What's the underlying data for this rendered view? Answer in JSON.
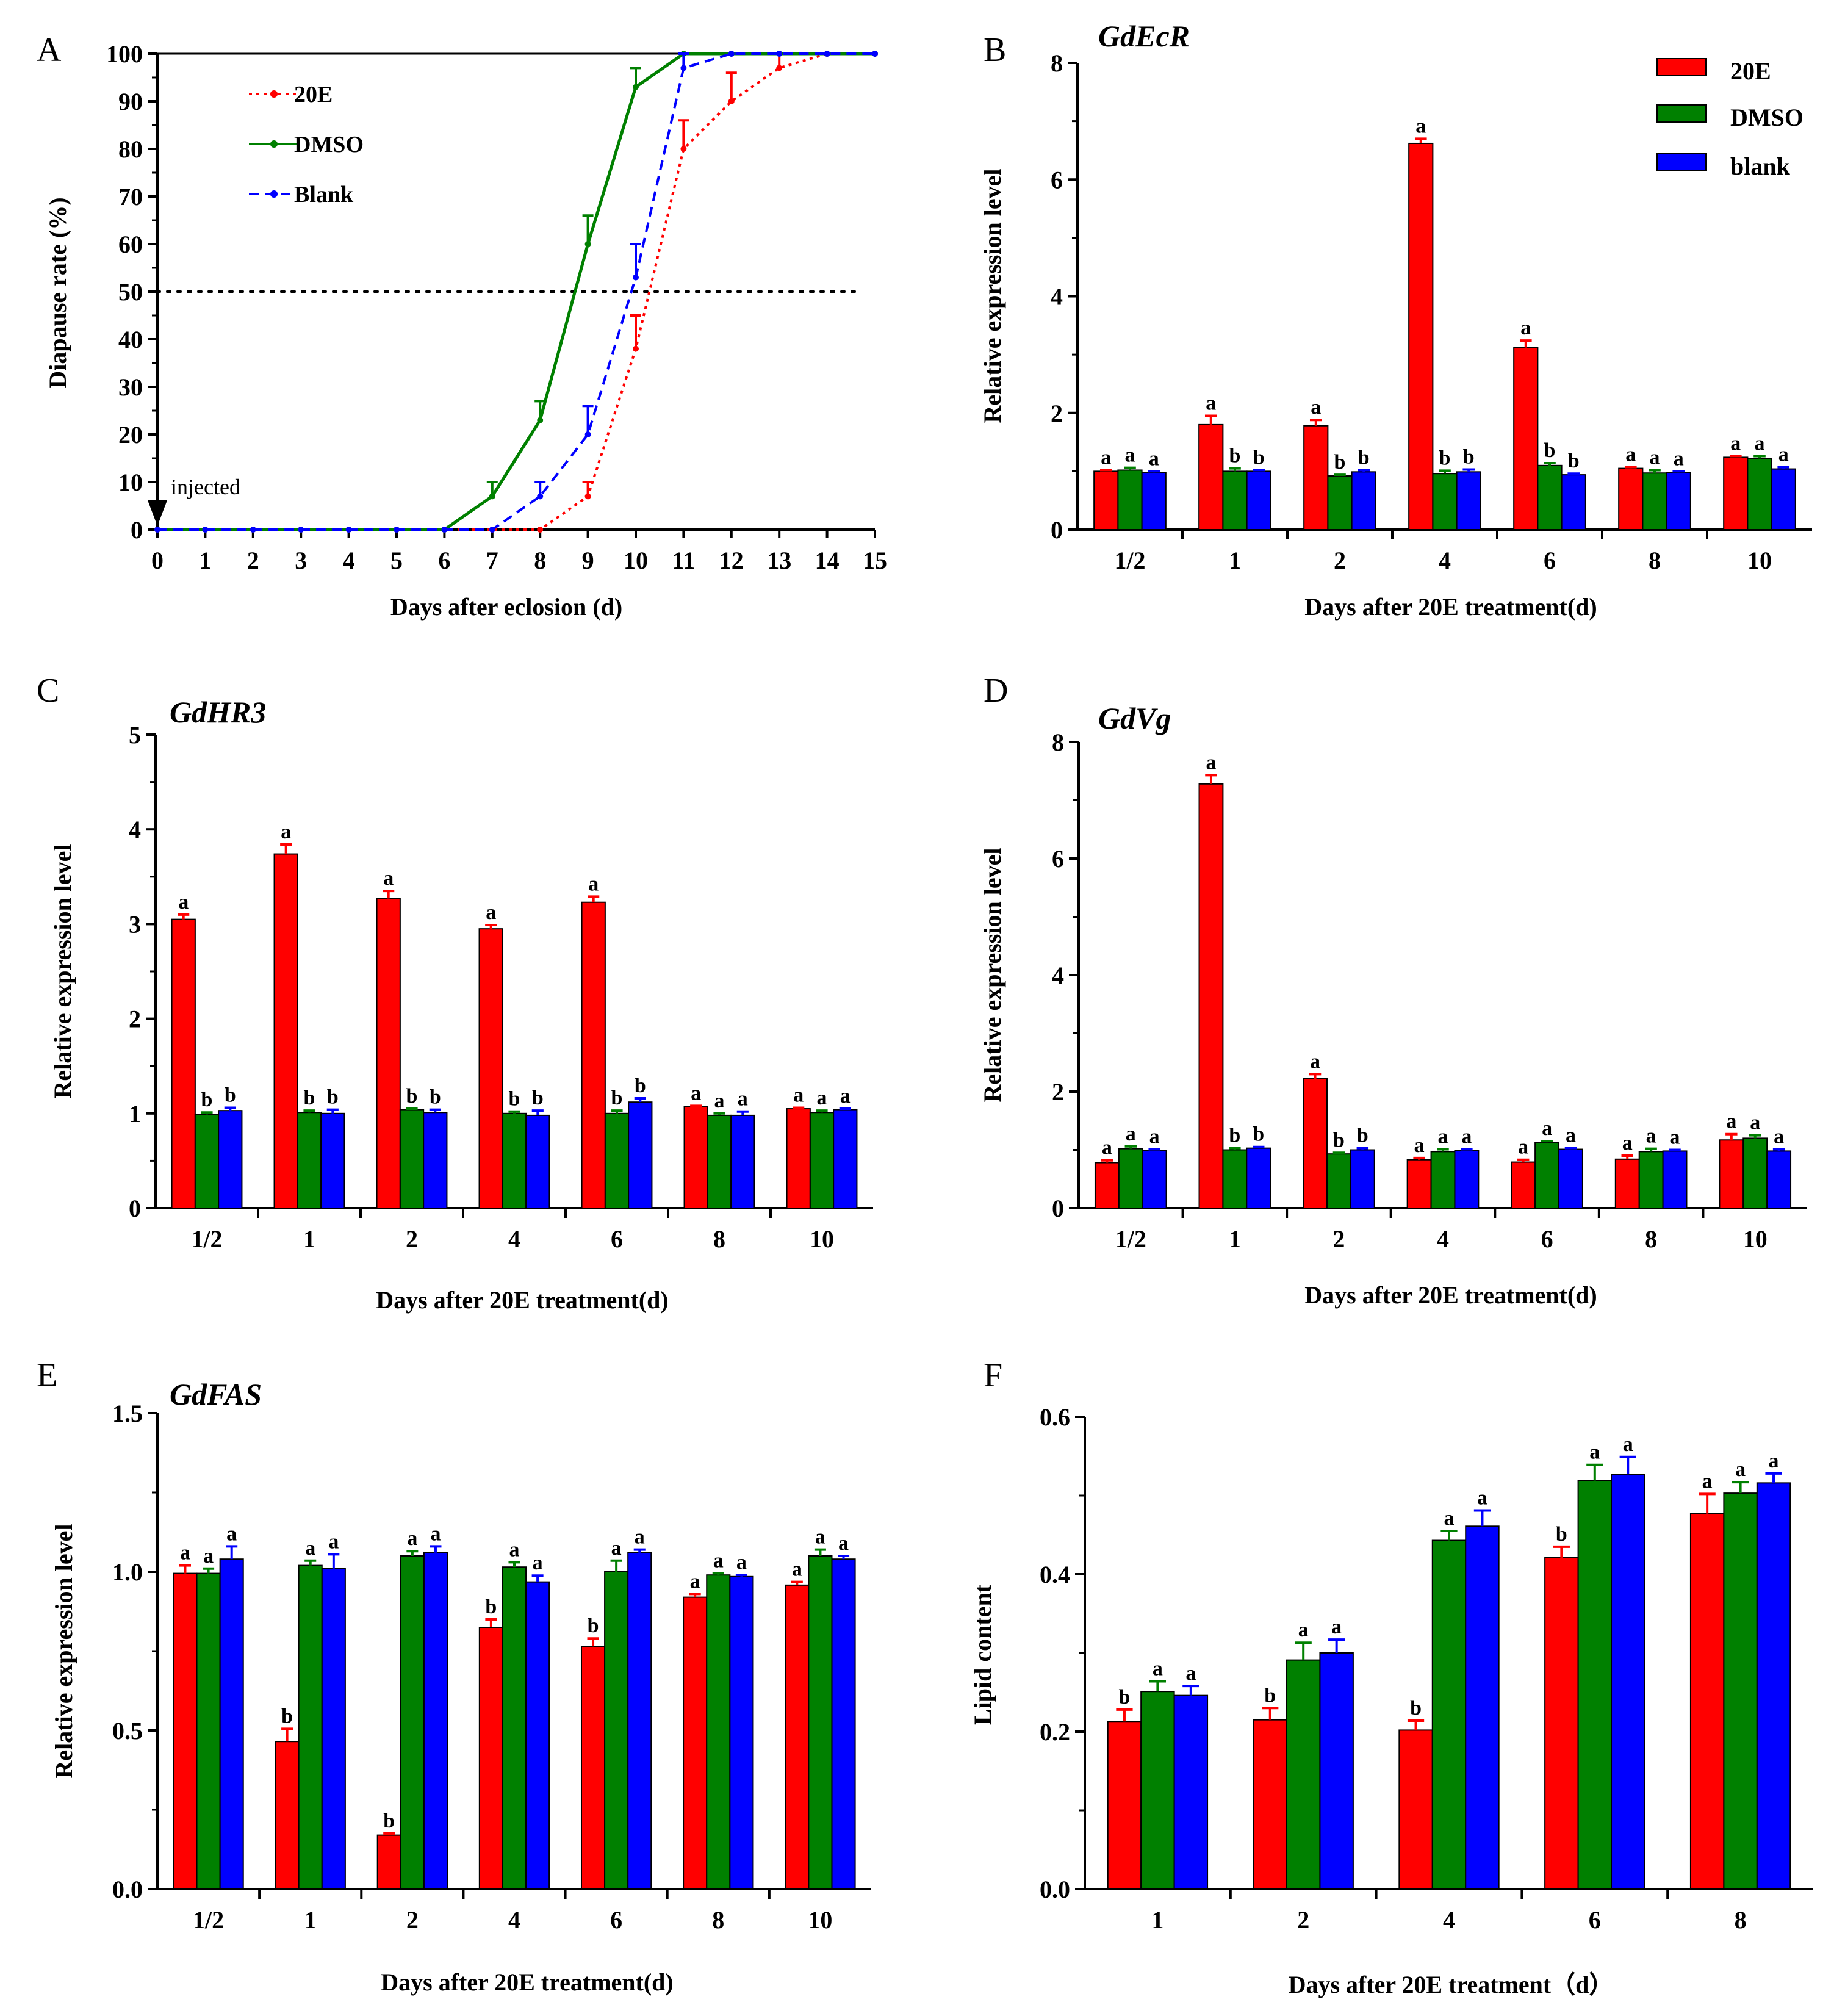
{
  "figure": {
    "background": "#ffffff"
  },
  "colors": {
    "20E": "#ff0000",
    "DMSO": "#008000",
    "blank": "#0000ff",
    "axis": "#000000",
    "bar_outline": "#000000"
  },
  "icons": {
    "injection_marker": "down-arrow-icon"
  },
  "chart_data": [
    {
      "panel": "A",
      "type": "line",
      "title": "",
      "xlabel": "Days after eclosion (d)",
      "ylabel": "Diapause rate (%)",
      "xlim": [
        0,
        15
      ],
      "ylim": [
        0,
        100
      ],
      "xticks": [
        "0",
        "1",
        "2",
        "3",
        "4",
        "5",
        "6",
        "7",
        "8",
        "9",
        "10",
        "11",
        "12",
        "13",
        "14",
        "15"
      ],
      "yticks": [
        "0",
        "10",
        "20",
        "30",
        "40",
        "50",
        "60",
        "70",
        "80",
        "90",
        "100"
      ],
      "reference_line": {
        "y": 50,
        "style": "dotted"
      },
      "annotation": {
        "text": "injected",
        "x": 0
      },
      "legend_position": "top-left",
      "grid": false,
      "series": [
        {
          "name": "20E",
          "color": "#ff0000",
          "style": "dotted",
          "x": [
            0,
            1,
            2,
            3,
            4,
            5,
            6,
            7,
            8,
            9,
            10,
            11,
            12,
            13,
            14,
            15
          ],
          "values": [
            0,
            0,
            0,
            0,
            0,
            0,
            0,
            0,
            0,
            7,
            38,
            80,
            90,
            97,
            100,
            100
          ],
          "errors": [
            0,
            0,
            0,
            0,
            0,
            0,
            0,
            0,
            0,
            3,
            7,
            6,
            6,
            3,
            0,
            0
          ]
        },
        {
          "name": "DMSO",
          "color": "#008000",
          "style": "solid",
          "x": [
            0,
            1,
            2,
            3,
            4,
            5,
            6,
            7,
            8,
            9,
            10,
            11,
            12,
            13,
            14,
            15
          ],
          "values": [
            0,
            0,
            0,
            0,
            0,
            0,
            0,
            7,
            23,
            60,
            93,
            100,
            100,
            100,
            100,
            100
          ],
          "errors": [
            0,
            0,
            0,
            0,
            0,
            0,
            0,
            3,
            4,
            6,
            4,
            0,
            0,
            0,
            0,
            0
          ]
        },
        {
          "name": "Blank",
          "color": "#0000ff",
          "style": "dashed",
          "x": [
            0,
            1,
            2,
            3,
            4,
            5,
            6,
            7,
            8,
            9,
            10,
            11,
            12,
            13,
            14,
            15
          ],
          "values": [
            0,
            0,
            0,
            0,
            0,
            0,
            0,
            0,
            7,
            20,
            53,
            97,
            100,
            100,
            100,
            100
          ],
          "errors": [
            0,
            0,
            0,
            0,
            0,
            0,
            0,
            0,
            3,
            6,
            7,
            3,
            0,
            0,
            0,
            0
          ]
        }
      ]
    },
    {
      "panel": "B",
      "type": "bar",
      "title": "GdEcR",
      "xlabel": "Days after 20E treatment(d)",
      "ylabel": "Relative expression level",
      "ylim": [
        0,
        8
      ],
      "yticks": [
        "0",
        "2",
        "4",
        "6",
        "8"
      ],
      "categories": [
        "1/2",
        "1",
        "2",
        "4",
        "6",
        "8",
        "10"
      ],
      "legend_position": "top-right",
      "legend": [
        "20E",
        "DMSO",
        "blank"
      ],
      "series": [
        {
          "name": "20E",
          "color": "#ff0000",
          "values": [
            1.0,
            1.8,
            1.78,
            6.62,
            3.12,
            1.05,
            1.24
          ],
          "errors": [
            0.02,
            0.15,
            0.1,
            0.08,
            0.12,
            0.02,
            0.02
          ],
          "labels": [
            "a",
            "a",
            "a",
            "a",
            "a",
            "a",
            "a"
          ]
        },
        {
          "name": "DMSO",
          "color": "#008000",
          "values": [
            1.02,
            1.0,
            0.92,
            0.96,
            1.1,
            0.97,
            1.22
          ],
          "errors": [
            0.04,
            0.05,
            0.02,
            0.05,
            0.04,
            0.05,
            0.04
          ],
          "labels": [
            "a",
            "b",
            "b",
            "b",
            "b",
            "a",
            "a"
          ]
        },
        {
          "name": "blank",
          "color": "#0000ff",
          "values": [
            0.98,
            1.0,
            0.99,
            0.99,
            0.94,
            0.98,
            1.04
          ],
          "errors": [
            0.02,
            0.02,
            0.03,
            0.04,
            0.02,
            0.02,
            0.03
          ],
          "labels": [
            "a",
            "b",
            "b",
            "b",
            "b",
            "a",
            "a"
          ]
        }
      ]
    },
    {
      "panel": "C",
      "type": "bar",
      "title": "GdHR3",
      "xlabel": "Days after 20E treatment(d)",
      "ylabel": "Relative expression level",
      "ylim": [
        0,
        5
      ],
      "yticks": [
        "0",
        "1",
        "2",
        "3",
        "4",
        "5"
      ],
      "categories": [
        "1/2",
        "1",
        "2",
        "4",
        "6",
        "8",
        "10"
      ],
      "series": [
        {
          "name": "20E",
          "color": "#ff0000",
          "values": [
            3.05,
            3.74,
            3.27,
            2.95,
            3.23,
            1.07,
            1.05
          ],
          "errors": [
            0.05,
            0.1,
            0.08,
            0.04,
            0.06,
            0.01,
            0.01
          ],
          "labels": [
            "a",
            "a",
            "a",
            "a",
            "a",
            "a",
            "a"
          ]
        },
        {
          "name": "DMSO",
          "color": "#008000",
          "values": [
            0.99,
            1.01,
            1.04,
            1.0,
            1.0,
            0.98,
            1.01
          ],
          "errors": [
            0.02,
            0.02,
            0.01,
            0.02,
            0.03,
            0.02,
            0.02
          ],
          "labels": [
            "b",
            "b",
            "b",
            "b",
            "b",
            "a",
            "a"
          ]
        },
        {
          "name": "blank",
          "color": "#0000ff",
          "values": [
            1.03,
            1.0,
            1.01,
            0.98,
            1.12,
            0.98,
            1.04
          ],
          "errors": [
            0.03,
            0.04,
            0.03,
            0.05,
            0.04,
            0.04,
            0.01
          ],
          "labels": [
            "b",
            "b",
            "b",
            "b",
            "b",
            "a",
            "a"
          ]
        }
      ]
    },
    {
      "panel": "D",
      "type": "bar",
      "title": "GdVg",
      "xlabel": "Days after 20E treatment(d)",
      "ylabel": "Relative expression level",
      "ylim": [
        0,
        8
      ],
      "yticks": [
        "0",
        "2",
        "4",
        "6",
        "8"
      ],
      "categories": [
        "1/2",
        "1",
        "2",
        "4",
        "6",
        "8",
        "10"
      ],
      "series": [
        {
          "name": "20E",
          "color": "#ff0000",
          "values": [
            0.78,
            7.28,
            2.22,
            0.83,
            0.79,
            0.84,
            1.17
          ],
          "errors": [
            0.04,
            0.15,
            0.08,
            0.03,
            0.04,
            0.06,
            0.1
          ],
          "labels": [
            "a",
            "a",
            "a",
            "a",
            "a",
            "a",
            "a"
          ]
        },
        {
          "name": "DMSO",
          "color": "#008000",
          "values": [
            1.02,
            1.0,
            0.93,
            0.97,
            1.13,
            0.97,
            1.2
          ],
          "errors": [
            0.04,
            0.03,
            0.02,
            0.04,
            0.02,
            0.05,
            0.05
          ],
          "labels": [
            "a",
            "b",
            "b",
            "a",
            "a",
            "a",
            "a"
          ]
        },
        {
          "name": "blank",
          "color": "#0000ff",
          "values": [
            0.99,
            1.03,
            1.0,
            0.99,
            1.01,
            0.98,
            0.98
          ],
          "errors": [
            0.02,
            0.02,
            0.03,
            0.02,
            0.02,
            0.02,
            0.03
          ],
          "labels": [
            "a",
            "b",
            "b",
            "a",
            "a",
            "a",
            "a"
          ]
        }
      ]
    },
    {
      "panel": "E",
      "type": "bar",
      "title": "GdFAS",
      "xlabel": "Days after 20E treatment(d)",
      "ylabel": "Relative expression level",
      "ylim": [
        0,
        1.5
      ],
      "yticks": [
        "0.0",
        "0.5",
        "1.0",
        "1.5"
      ],
      "categories": [
        "1/2",
        "1",
        "2",
        "4",
        "6",
        "8",
        "10"
      ],
      "series": [
        {
          "name": "20E",
          "color": "#ff0000",
          "values": [
            0.995,
            0.465,
            0.17,
            0.825,
            0.765,
            0.92,
            0.958
          ],
          "errors": [
            0.025,
            0.04,
            0.005,
            0.025,
            0.025,
            0.01,
            0.01
          ],
          "labels": [
            "a",
            "b",
            "b",
            "b",
            "b",
            "a",
            "a"
          ]
        },
        {
          "name": "DMSO",
          "color": "#008000",
          "values": [
            0.995,
            1.02,
            1.05,
            1.015,
            1.0,
            0.99,
            1.05
          ],
          "errors": [
            0.015,
            0.015,
            0.015,
            0.015,
            0.035,
            0.005,
            0.02
          ],
          "labels": [
            "a",
            "a",
            "a",
            "a",
            "a",
            "a",
            "a"
          ]
        },
        {
          "name": "blank",
          "color": "#0000ff",
          "values": [
            1.04,
            1.01,
            1.06,
            0.968,
            1.06,
            0.985,
            1.04
          ],
          "errors": [
            0.04,
            0.045,
            0.02,
            0.02,
            0.01,
            0.005,
            0.01
          ],
          "labels": [
            "a",
            "a",
            "a",
            "a",
            "a",
            "a",
            "a"
          ]
        }
      ]
    },
    {
      "panel": "F",
      "type": "bar",
      "title": "",
      "xlabel": "Days after 20E treatment（d）",
      "ylabel": "Lipid content",
      "ylim": [
        0,
        0.6
      ],
      "yticks": [
        "0.0",
        "0.2",
        "0.4",
        "0.6"
      ],
      "categories": [
        "1",
        "2",
        "4",
        "6",
        "8"
      ],
      "series": [
        {
          "name": "20E",
          "color": "#ff0000",
          "values": [
            0.213,
            0.215,
            0.202,
            0.421,
            0.477
          ],
          "errors": [
            0.015,
            0.015,
            0.012,
            0.014,
            0.025
          ],
          "labels": [
            "b",
            "b",
            "b",
            "b",
            "a"
          ]
        },
        {
          "name": "DMSO",
          "color": "#008000",
          "values": [
            0.251,
            0.291,
            0.443,
            0.519,
            0.503
          ],
          "errors": [
            0.013,
            0.022,
            0.012,
            0.02,
            0.014
          ],
          "labels": [
            "a",
            "a",
            "a",
            "a",
            "a"
          ]
        },
        {
          "name": "blank",
          "color": "#0000ff",
          "values": [
            0.246,
            0.3,
            0.461,
            0.527,
            0.516
          ],
          "errors": [
            0.012,
            0.017,
            0.02,
            0.022,
            0.012
          ],
          "labels": [
            "a",
            "a",
            "a",
            "a",
            "a"
          ]
        }
      ]
    }
  ]
}
